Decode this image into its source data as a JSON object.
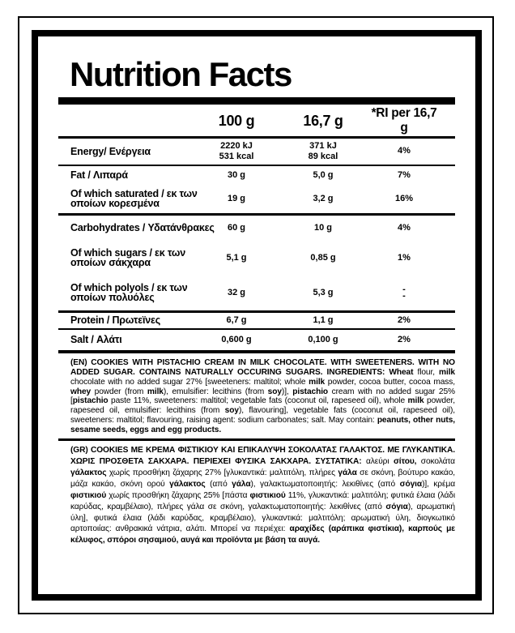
{
  "meta": {
    "background_color": "#ffffff",
    "ink_color": "#000000"
  },
  "title": "Nutrition Facts",
  "table": {
    "columns": {
      "per100": "100 g",
      "per_serving": "16,7 g",
      "ri": "*RI per 16,7 g"
    },
    "rows": [
      {
        "label": "Energy/ Ενέργεια",
        "v100_l1": "2220 kJ",
        "v100_l2": "531 kcal",
        "v167_l1": "371 kJ",
        "v167_l2": "89 kcal",
        "ri": "4%"
      },
      {
        "label": "Fat / Λιπαρά",
        "v100": "30 g",
        "v167": "5,0 g",
        "ri": "7%"
      },
      {
        "label_l1": "Of which saturated / εκ των",
        "label_l2": "οποίων κορεσμένα",
        "v100": "19 g",
        "v167": "3,2 g",
        "ri": "16%"
      },
      {
        "label": "Carbohydrates / Υδατάνθρακες",
        "v100": "60 g",
        "v167": "10 g",
        "ri": "4%"
      },
      {
        "label_l1": "Of which sugars / εκ των",
        "label_l2": "οποίων σάκχαρα",
        "v100": "5,1 g",
        "v167": "0,85 g",
        "ri": "1%"
      },
      {
        "label_l1": "Of which polyols / εκ των",
        "label_l2": "οποίων πολυόλες",
        "v100": "32 g",
        "v167": "5,3 g",
        "ri_l1": "-",
        "ri_l2": "-"
      },
      {
        "label": "Protein / Πρωτεϊνες",
        "v100": "6,7 g",
        "v167": "1,1 g",
        "ri": "2%"
      },
      {
        "label": "Salt / Αλάτι",
        "v100": "0,600 g",
        "v167": "0,100 g",
        "ri": "2%"
      }
    ]
  },
  "ingredients_en": {
    "segments": [
      {
        "b": true,
        "t": "(EN) COOKIES WITH PISTACHIO CREAM IN MILK CHOCOLATE. WITH SWEETENERS. WITH NO ADDED SUGAR. CONTAINS NATURALLY OCCURING SUGARS. INGREDIENTS: Wheat"
      },
      {
        "b": false,
        "t": " flour, "
      },
      {
        "b": true,
        "t": "milk"
      },
      {
        "b": false,
        "t": " chocolate with no added sugar 27% [sweeteners: maltitol; whole "
      },
      {
        "b": true,
        "t": "milk"
      },
      {
        "b": false,
        "t": " powder, cocoa butter, cocoa mass, "
      },
      {
        "b": true,
        "t": "whey"
      },
      {
        "b": false,
        "t": " powder (from "
      },
      {
        "b": true,
        "t": "milk"
      },
      {
        "b": false,
        "t": "), emulsifier: lecithins (from "
      },
      {
        "b": true,
        "t": "soy"
      },
      {
        "b": false,
        "t": ")], "
      },
      {
        "b": true,
        "t": "pistachio"
      },
      {
        "b": false,
        "t": " cream with no added sugar 25% ["
      },
      {
        "b": true,
        "t": "pistachio"
      },
      {
        "b": false,
        "t": " paste 11%, sweeteners: maltitol; vegetable fats (coconut oil, rapeseed oil), whole "
      },
      {
        "b": true,
        "t": "milk"
      },
      {
        "b": false,
        "t": " powder, rapeseed oil, emulsifier: lecithins (from "
      },
      {
        "b": true,
        "t": "soy"
      },
      {
        "b": false,
        "t": "), flavouring], vegetable fats (coconut oil, rapeseed oil), sweeteners: maltitol; flavouring, raising agent: sodium carbonates; salt. May contain: "
      },
      {
        "b": true,
        "t": "peanuts, other nuts, sesame seeds, eggs and egg products."
      }
    ]
  },
  "ingredients_gr": {
    "segments": [
      {
        "b": true,
        "t": "(GR) COOKIES ΜΕ ΚΡΕΜΑ ΦΙΣΤΙΚΙΟΥ ΚΑΙ ΕΠΙΚΑΛΥΨΗ ΣΟΚΟΛΑΤΑΣ ΓΑΛΑΚΤΟΣ. ΜΕ ΓΛΥΚΑΝΤΙΚΑ. ΧΩΡΙΣ ΠΡΟΣΘΕΤΑ ΣΑΚΧΑΡΑ. ΠΕΡΙΕΧΕΙ ΦΥΣΙΚΑ ΣΑΚΧΑΡΑ. ΣΥΣΤΑΤΙΚΑ:"
      },
      {
        "b": false,
        "t": " αλεύρι "
      },
      {
        "b": true,
        "t": "σίτου,"
      },
      {
        "b": false,
        "t": " σοκολάτα "
      },
      {
        "b": true,
        "t": "γάλακτος"
      },
      {
        "b": false,
        "t": " χωρίς προσθήκη ζάχαρης 27% [γλυκαντικά: μαλτιτόλη, πλήρες "
      },
      {
        "b": true,
        "t": "γάλα"
      },
      {
        "b": false,
        "t": " σε σκόνη, βούτυρο κακάο, μάζα κακάο, σκόνη ορού "
      },
      {
        "b": true,
        "t": "γάλακτος"
      },
      {
        "b": false,
        "t": " (από "
      },
      {
        "b": true,
        "t": "γάλα"
      },
      {
        "b": false,
        "t": "), γαλακτωματοποιητής: λεκιθίνες (από "
      },
      {
        "b": true,
        "t": "σόγια"
      },
      {
        "b": false,
        "t": ")], κρέμα "
      },
      {
        "b": true,
        "t": "φιστικιού"
      },
      {
        "b": false,
        "t": " χωρίς προσθήκη ζάχαρης 25% [πάστα "
      },
      {
        "b": true,
        "t": "φιστικιού"
      },
      {
        "b": false,
        "t": " 11%, γλυκαντικά: μαλτιτόλη; φυτικά έλαια (λάδι καρύδας, κραμβέλαιο), πλήρες γάλα σε σκόνη, γαλακτωματοποιητής: λεκιθίνες (από "
      },
      {
        "b": true,
        "t": "σόγια"
      },
      {
        "b": false,
        "t": "), αρωματική ύλη], φυτικά έλαια (λάδι καρύδας, κραμβέλαιο), γλυκαντικά: μαλτιτόλη; αρωματική ύλη, διογκωτικό αρτοποιίας: ανθρακικά νάτρια, αλάτι. Μπορεί να περιέχει: "
      },
      {
        "b": true,
        "t": "αραχίδες (αράπικα φιστίκια), καρπούς με κέλυφος, σπόροι σησαμιού, αυγά και προϊόντα με βάση τα αυγά."
      }
    ]
  }
}
